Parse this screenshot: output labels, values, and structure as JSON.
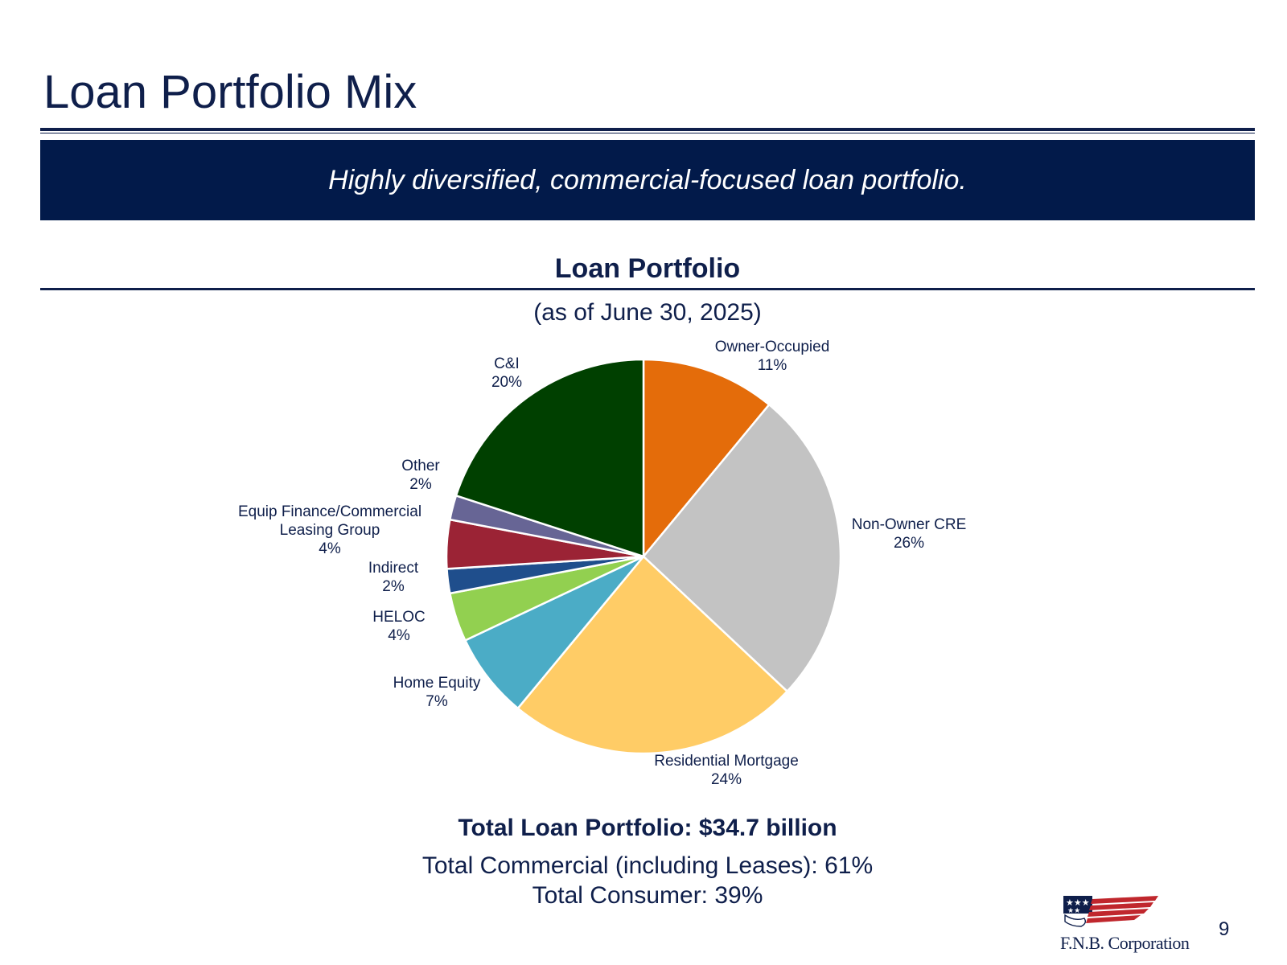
{
  "slide": {
    "title": "Loan Portfolio Mix",
    "banner": "Highly diversified, commercial-focused loan portfolio.",
    "page_number": "9",
    "logo_text": "F.N.B. Corporation"
  },
  "chart_data": {
    "type": "pie",
    "title": "Loan Portfolio",
    "subtitle": "(as of June 30, 2025)",
    "slices": [
      {
        "label": "Owner-Occupied",
        "value": 11,
        "display": "11%",
        "color": "#e46c0a"
      },
      {
        "label": "Non-Owner CRE",
        "value": 26,
        "display": "26%",
        "color": "#c3c3c3"
      },
      {
        "label": "Residential Mortgage",
        "value": 24,
        "display": "24%",
        "color": "#ffcc66"
      },
      {
        "label": "Home Equity",
        "value": 7,
        "display": "7%",
        "color": "#4bacc6"
      },
      {
        "label": "HELOC",
        "value": 4,
        "display": "4%",
        "color": "#92d050"
      },
      {
        "label": "Indirect",
        "value": 2,
        "display": "2%",
        "color": "#1f4e8c"
      },
      {
        "label": "Equip Finance/Commercial Leasing Group",
        "value": 4,
        "display": "4%",
        "color": "#9b2335"
      },
      {
        "label": "Other",
        "value": 2,
        "display": "2%",
        "color": "#676595"
      },
      {
        "label": "C&I",
        "value": 20,
        "display": "20%",
        "color": "#004000"
      }
    ],
    "label_color": "#0f1f4b"
  },
  "summary": {
    "total": "Total Loan Portfolio: $34.7 billion",
    "commercial": "Total Commercial (including Leases): 61%",
    "consumer": "Total Consumer: 39%"
  },
  "colors": {
    "brand_navy": "#021a4a",
    "text_navy": "#0f1f4b",
    "logo_red": "#c0272d"
  }
}
